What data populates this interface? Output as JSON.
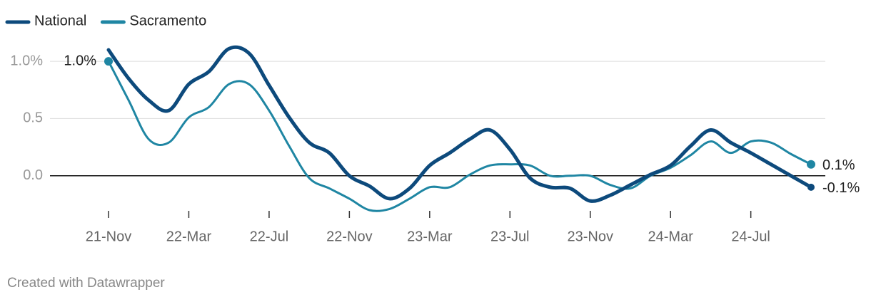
{
  "chart_data": {
    "type": "line",
    "categories": [
      "21-Nov",
      null,
      null,
      null,
      "22-Mar",
      null,
      null,
      null,
      "22-Jul",
      null,
      null,
      null,
      "22-Nov",
      null,
      null,
      null,
      "23-Mar",
      null,
      null,
      null,
      "23-Jul",
      null,
      null,
      null,
      "23-Nov",
      null,
      null,
      null,
      "24-Mar",
      null,
      null,
      null,
      "24-Jul",
      null,
      null,
      null
    ],
    "series": [
      {
        "name": "National",
        "color": "#0d4a7c",
        "values": [
          1.1,
          0.85,
          0.66,
          0.57,
          0.8,
          0.91,
          1.11,
          1.07,
          0.79,
          0.51,
          0.29,
          0.2,
          0,
          -0.09,
          -0.2,
          -0.11,
          0.09,
          0.2,
          0.32,
          0.4,
          0.23,
          -0.02,
          -0.1,
          -0.11,
          -0.22,
          -0.17,
          -0.08,
          0.01,
          0.09,
          0.26,
          0.4,
          0.29,
          0.2,
          0.1,
          0,
          -0.1
        ],
        "value_labels": [
          null,
          null,
          null,
          null,
          null,
          null,
          null,
          null,
          null,
          null,
          null,
          null,
          null,
          null,
          null,
          null,
          null,
          null,
          null,
          null,
          null,
          null,
          null,
          null,
          null,
          null,
          null,
          null,
          null,
          null,
          null,
          null,
          null,
          null,
          null,
          "-0.1%"
        ]
      },
      {
        "name": "Sacramento",
        "color": "#1f86a3",
        "values": [
          1.0,
          0.66,
          0.32,
          0.29,
          0.51,
          0.6,
          0.8,
          0.8,
          0.57,
          0.26,
          -0.02,
          -0.11,
          -0.2,
          -0.3,
          -0.29,
          -0.2,
          -0.1,
          -0.1,
          0.01,
          0.09,
          0.1,
          0.09,
          0,
          0,
          0,
          -0.08,
          -0.11,
          0,
          0.07,
          0.18,
          0.3,
          0.2,
          0.3,
          0.29,
          0.19,
          0.1
        ],
        "value_labels": [
          "1.0%",
          null,
          null,
          null,
          null,
          null,
          null,
          null,
          null,
          null,
          null,
          null,
          null,
          null,
          null,
          null,
          null,
          null,
          null,
          null,
          null,
          null,
          null,
          null,
          null,
          null,
          null,
          null,
          null,
          null,
          null,
          null,
          null,
          null,
          null,
          "0.1%"
        ]
      }
    ],
    "ylim": [
      -0.3,
      1.1
    ],
    "yticks": [
      {
        "value": 1,
        "label": "1.0%"
      },
      {
        "value": 0.5,
        "label": "0.5"
      },
      {
        "value": 0,
        "label": "0.0"
      }
    ],
    "grid": true,
    "legend": "top-left",
    "note": "Created with Datawrapper"
  }
}
